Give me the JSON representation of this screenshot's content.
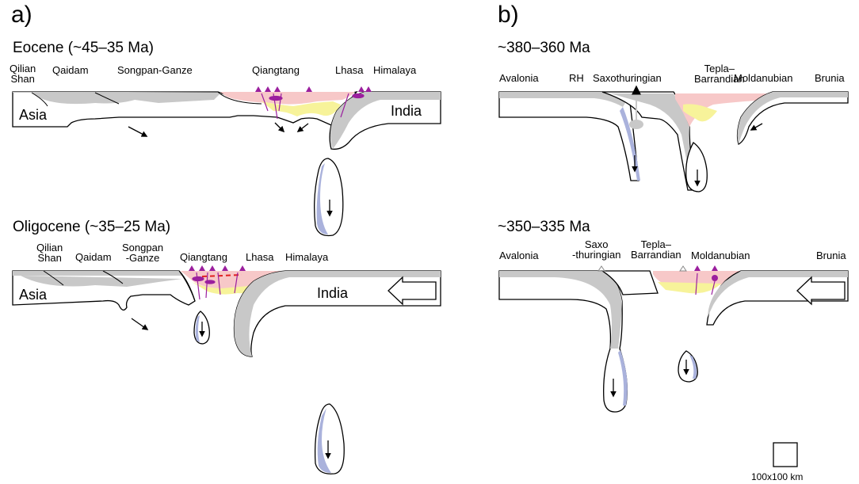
{
  "panels": {
    "a": {
      "letter": "a)",
      "top": {
        "period": "Eocene (~45–35 Ma)",
        "terranes": [
          "Qilian\nShan",
          "Qaidam",
          "Songpan-Ganze",
          "Qiangtang",
          "Lhasa",
          "Himalaya"
        ],
        "plates": [
          "Asia",
          "India"
        ]
      },
      "bottom": {
        "period": "Oligocene (~35–25 Ma)",
        "terranes": [
          "Qilian\nShan",
          "Qaidam",
          "Songpan\n-Ganze",
          "Qiangtang",
          "Lhasa",
          "Himalaya"
        ],
        "plates": [
          "Asia",
          "India"
        ]
      }
    },
    "b": {
      "letter": "b)",
      "top": {
        "period": "~380–360 Ma",
        "terranes": [
          "Avalonia",
          "RH",
          "Saxothuringian",
          "Tepla–\nBarrandian",
          "Moldanubian",
          "Brunia"
        ]
      },
      "bottom": {
        "period": "~350–335 Ma",
        "terranes": [
          "Avalonia",
          "Saxo\n-thuringian",
          "Tepla–\nBarrandian",
          "Moldanubian",
          "Brunia"
        ]
      }
    }
  },
  "scale_bar": {
    "label": "100x100 km"
  },
  "colors": {
    "crust": "#c8c8c8",
    "melt_pink": "#f7c8c8",
    "melt_yellow": "#f7f39a",
    "slab_blue": "#aab2dc",
    "magma_purple": "#9b1f9e",
    "outline": "#000000"
  }
}
